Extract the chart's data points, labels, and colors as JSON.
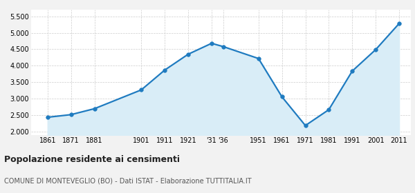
{
  "years": [
    1861,
    1871,
    1881,
    1901,
    1911,
    1921,
    1931,
    1936,
    1951,
    1961,
    1971,
    1981,
    1991,
    2001,
    2011
  ],
  "population": [
    2440,
    2520,
    2700,
    3270,
    3870,
    4350,
    4680,
    4580,
    4220,
    3060,
    2190,
    2670,
    3840,
    4490,
    5280
  ],
  "line_color": "#1f7bc0",
  "fill_color": "#d9edf7",
  "marker_color": "#1f7bc0",
  "grid_color": "#cccccc",
  "bg_color": "#f2f2f2",
  "plot_bg_color": "#ffffff",
  "title": "Popolazione residente ai censimenti",
  "subtitle": "COMUNE DI MONTEVEGLIO (BO) - Dati ISTAT - Elaborazione TUTTITALIA.IT",
  "ylim_min": 1900,
  "ylim_max": 5700,
  "yticks": [
    2000,
    2500,
    3000,
    3500,
    4000,
    4500,
    5000,
    5500
  ]
}
